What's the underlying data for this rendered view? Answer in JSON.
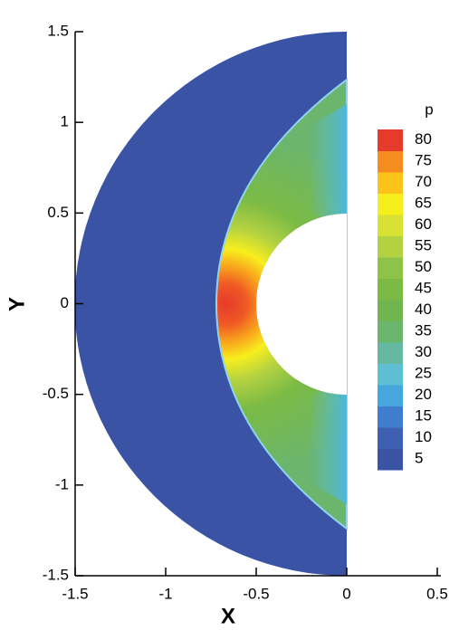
{
  "chart_data": {
    "type": "contour",
    "xlabel": "X",
    "ylabel": "Y",
    "xlim": [
      -1.5,
      0.52
    ],
    "ylim": [
      -1.5,
      1.5
    ],
    "xticks": [
      -1.5,
      -1,
      -0.5,
      0,
      0.5
    ],
    "yticks": [
      -1.5,
      -1,
      -0.5,
      0,
      0.5,
      1,
      1.5
    ],
    "colorbar": {
      "title": "p",
      "levels": [
        5,
        10,
        15,
        20,
        25,
        30,
        35,
        40,
        45,
        50,
        55,
        60,
        65,
        70,
        75,
        80
      ],
      "colors": [
        "#3a53a4",
        "#3d60b3",
        "#3f7ecf",
        "#48a6de",
        "#5ebfd2",
        "#66b8a0",
        "#6cb56c",
        "#70b550",
        "#7bba45",
        "#8ec249",
        "#b3d142",
        "#d8e234",
        "#f7ee1d",
        "#fcc41b",
        "#f68b1f",
        "#e63a2b"
      ]
    }
  }
}
